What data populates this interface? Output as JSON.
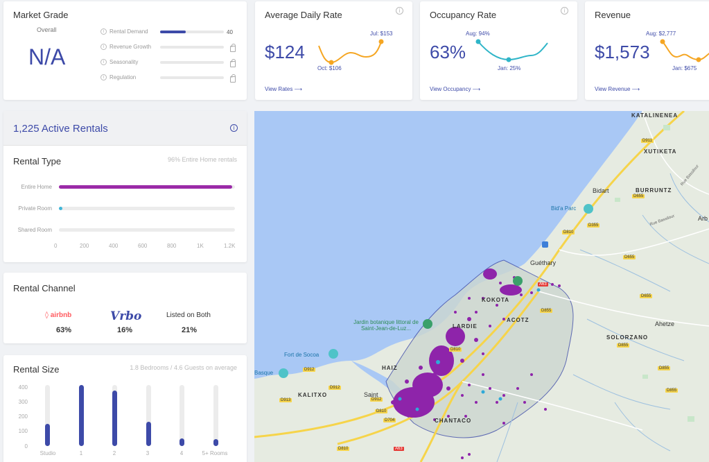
{
  "market_grade": {
    "title": "Market Grade",
    "overall_label": "Overall",
    "overall_value": "N/A",
    "rows": [
      {
        "label": "Rental Demand",
        "value": "40",
        "fill": 0.4,
        "locked": false
      },
      {
        "label": "Revenue Growth",
        "locked": true
      },
      {
        "label": "Seasonality",
        "locked": true
      },
      {
        "label": "Regulation",
        "locked": true
      }
    ]
  },
  "adr": {
    "title": "Average Daily Rate",
    "value": "$124",
    "high": "Jul: $153",
    "low": "Oct: $106",
    "link": "View Rates ⟶"
  },
  "occupancy": {
    "title": "Occupancy Rate",
    "value": "63%",
    "high": "Aug: 94%",
    "low": "Jan: 25%",
    "link": "View Occupancy ⟶"
  },
  "revenue": {
    "title": "Revenue",
    "value": "$1,573",
    "high": "Aug: $2,777",
    "low": "Jan: $675",
    "link": "View Revenue ⟶"
  },
  "active": {
    "title": "1,225 Active Rentals"
  },
  "rental_type": {
    "title": "Rental Type",
    "subtitle": "96% Entire Home rentals",
    "items": [
      {
        "label": "Entire Home",
        "value": 1180,
        "color": "#9b2aa8"
      },
      {
        "label": "Private Room",
        "value": 25,
        "color": "#3fb5d8"
      },
      {
        "label": "Shared Room",
        "value": 0,
        "color": "#3fb5d8"
      }
    ],
    "ticks": [
      "0",
      "200",
      "400",
      "600",
      "800",
      "1K",
      "1.2K"
    ],
    "max": 1200
  },
  "rental_channel": {
    "title": "Rental Channel",
    "airbnb_label": "airbnb",
    "airbnb_pct": "63%",
    "vrbo_label": "Vrbo",
    "vrbo_pct": "16%",
    "both_label": "Listed on Both",
    "both_pct": "21%"
  },
  "rental_size": {
    "title": "Rental Size",
    "subtitle": "1.8 Bedrooms / 4.6 Guests on average",
    "ticks": [
      "400",
      "300",
      "200",
      "100",
      "0"
    ],
    "max": 400,
    "cats": [
      {
        "label": "Studio",
        "value": 145
      },
      {
        "label": "1",
        "value": 415
      },
      {
        "label": "2",
        "value": 365
      },
      {
        "label": "3",
        "value": 160
      },
      {
        "label": "4",
        "value": 50
      },
      {
        "label": "5+ Rooms",
        "value": 45
      }
    ]
  },
  "map": {
    "places": [
      {
        "name": "KATALINENEA"
      },
      {
        "name": "XUTIKETA"
      },
      {
        "name": "Bidart"
      },
      {
        "name": "BURRUNTZ"
      },
      {
        "name": "Arb"
      },
      {
        "name": "Guéthary"
      },
      {
        "name": "KOKOTA"
      },
      {
        "name": "ACOTZ"
      },
      {
        "name": "Ahetze"
      },
      {
        "name": "SOLORZANO"
      },
      {
        "name": "HAIZ"
      },
      {
        "name": "KALITXO"
      },
      {
        "name": "Saint"
      },
      {
        "name": "CHANTACO"
      },
      {
        "name": "LARDIE"
      }
    ],
    "pois": [
      {
        "name": "Bid'a Parc"
      },
      {
        "name": "Jardin botanique littoral de Saint-Jean-de-Luz..."
      },
      {
        "name": "Fort de Socoa"
      },
      {
        "name": "Basque"
      }
    ],
    "roads": [
      "D911",
      "D655",
      "D355",
      "D810",
      "D655",
      "D655",
      "D855",
      "D855",
      "D855",
      "D855",
      "D810",
      "D912",
      "D912",
      "D912",
      "D913",
      "D810",
      "D704",
      "D810",
      "A63",
      "A63",
      "Rue Bassilour",
      "Rue Bassilour"
    ]
  }
}
